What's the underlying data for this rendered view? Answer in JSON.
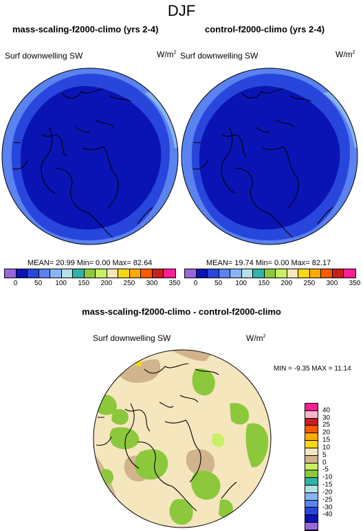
{
  "page_title": "DJF",
  "left_panel": {
    "title": "mass-scaling-f2000-climo (yrs 2-4)",
    "field": "Surf downwelling SW",
    "units": "W/m",
    "units_exp": "2",
    "stats": "MEAN= 20.99 Min=  0.00 Max= 82.64"
  },
  "right_panel": {
    "title": "control-f2000-climo (yrs 2-4)",
    "field": "Surf downwelling SW",
    "units": "W/m",
    "units_exp": "2",
    "stats": "MEAN= 19.74 Min=  0.00 Max= 82.17"
  },
  "diff_panel": {
    "title": "mass-scaling-f2000-climo - control-f2000-climo",
    "field": "Surf downwelling SW",
    "units": "W/m",
    "units_exp": "2",
    "minmax": "MIN = -9.35 MAX = 11.14"
  },
  "abs_colorbar": {
    "colors": [
      "#9966dd",
      "#0a14b4",
      "#2846dc",
      "#5a82f0",
      "#88b4f5",
      "#b4e0e6",
      "#2db4aa",
      "#8cc83c",
      "#c8f064",
      "#f5e6be",
      "#fad714",
      "#ffaa00",
      "#ff5a00",
      "#c81e1e",
      "#ff1e96"
    ],
    "labels": [
      "0",
      "50",
      "100",
      "150",
      "200",
      "250",
      "300",
      "350"
    ]
  },
  "diff_colorbar": {
    "colors": [
      "#9966dd",
      "#0a14b4",
      "#2846dc",
      "#5a82f0",
      "#88b4f5",
      "#b4e0e6",
      "#2db4aa",
      "#8cc83c",
      "#c8f064",
      "#d2b48c",
      "#f5e6be",
      "#fad714",
      "#ffaa00",
      "#ff5a00",
      "#c81e1e",
      "#ffb4c8",
      "#ff1e96"
    ],
    "labels": [
      "-40",
      "-30",
      "-25",
      "-20",
      "-15",
      "-10",
      "-5",
      "0",
      "5",
      "10",
      "15",
      "20",
      "25",
      "30",
      "40"
    ]
  }
}
